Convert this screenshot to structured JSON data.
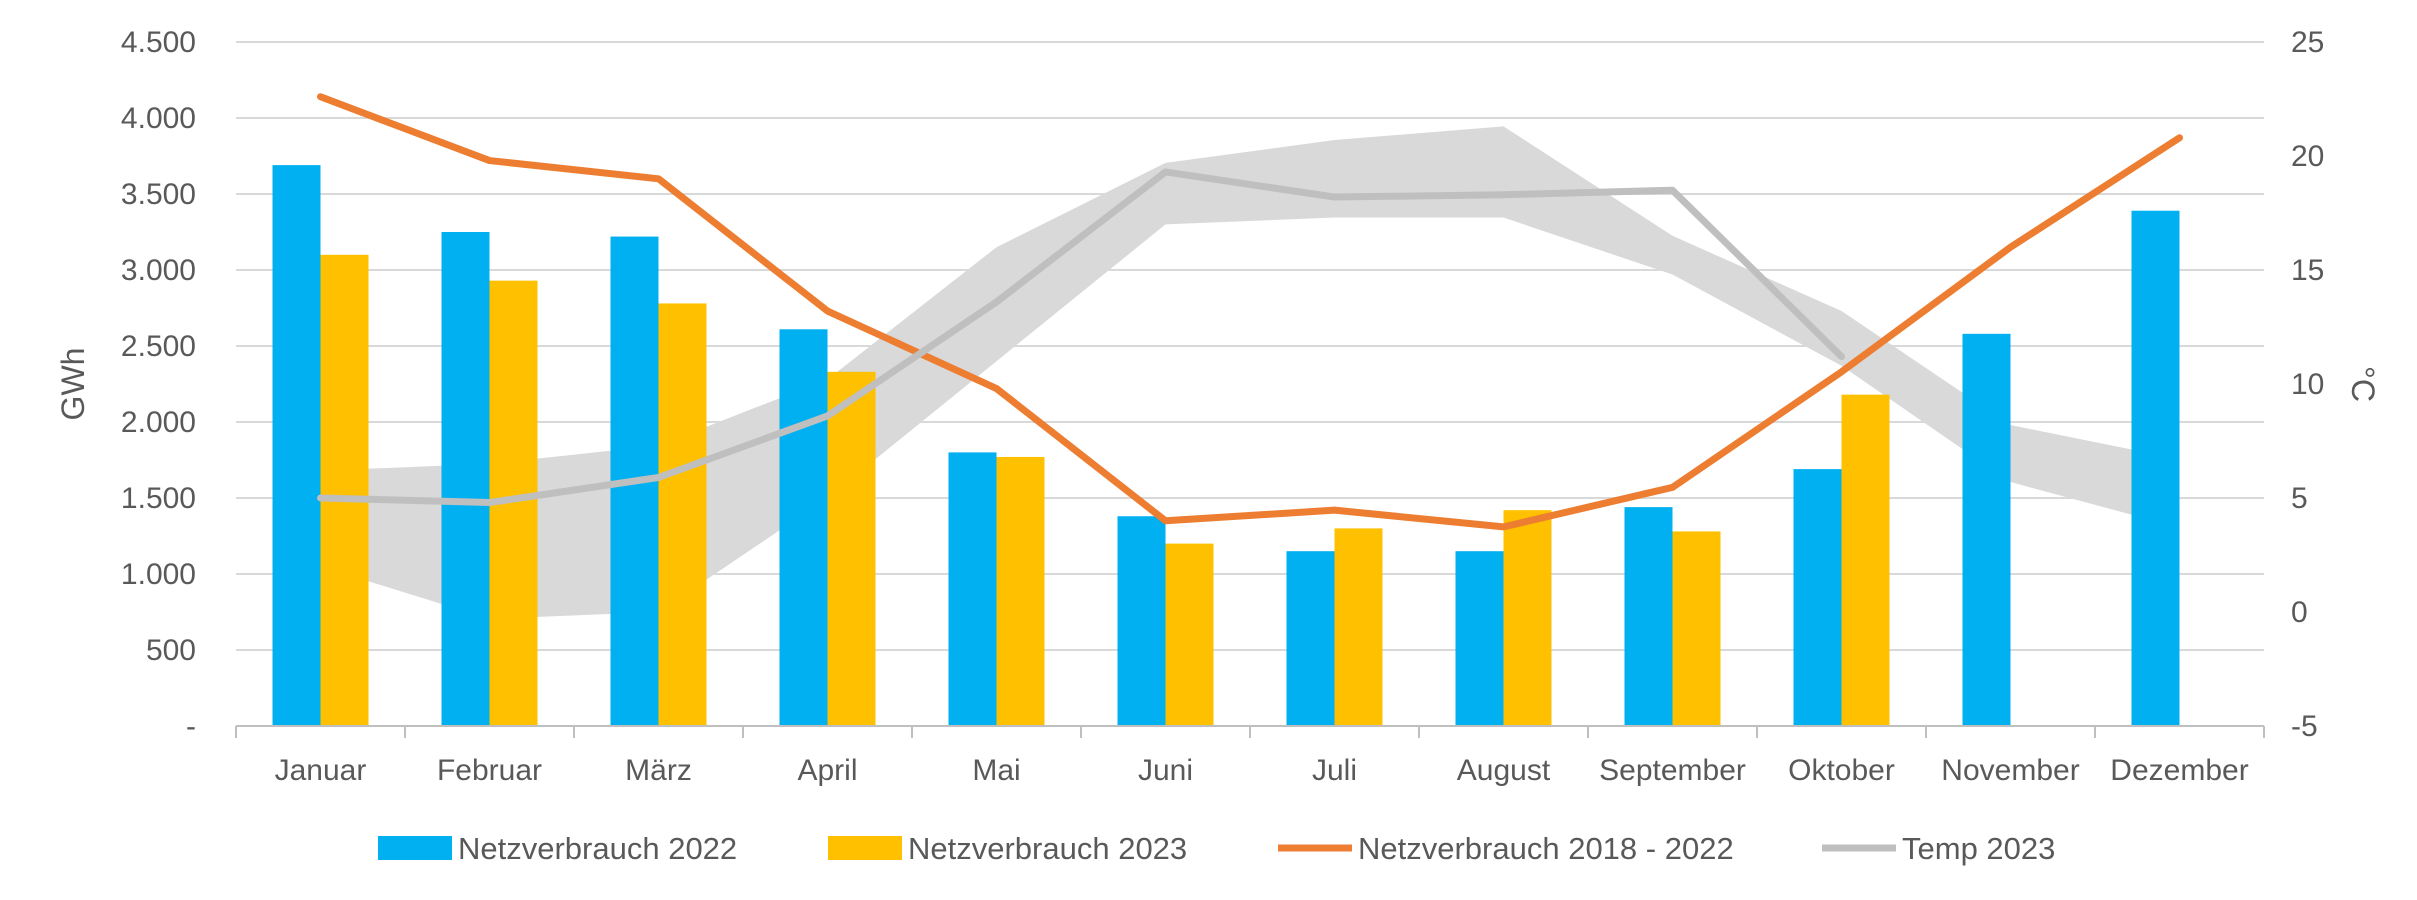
{
  "chart_data": {
    "type": "bar",
    "title": "",
    "categories": [
      "Januar",
      "Februar",
      "März",
      "April",
      "Mai",
      "Juni",
      "Juli",
      "August",
      "September",
      "Oktober",
      "November",
      "Dezember"
    ],
    "y_left": {
      "label": "GWh",
      "ylim": [
        0,
        4500
      ],
      "ticks": [
        0,
        500,
        1000,
        1500,
        2000,
        2500,
        3000,
        3500,
        4000,
        4500
      ],
      "tick_labels": [
        "-",
        "500",
        "1.000",
        "1.500",
        "2.000",
        "2.500",
        "3.000",
        "3.500",
        "4.000",
        "4.500"
      ]
    },
    "y_right": {
      "label": "°C",
      "ylim": [
        -5,
        25
      ],
      "ticks": [
        -5,
        0,
        5,
        10,
        15,
        20,
        25
      ],
      "tick_labels": [
        "-5",
        "0",
        "5",
        "10",
        "15",
        "20",
        "25"
      ]
    },
    "grid": true,
    "legend_position": "bottom",
    "series": [
      {
        "name": "Netzverbrauch 2022",
        "kind": "bar",
        "axis": "left",
        "color": "#00B0F0",
        "values": [
          3690,
          3250,
          3220,
          2610,
          1800,
          1380,
          1150,
          1150,
          1440,
          1690,
          2580,
          3390
        ]
      },
      {
        "name": "Netzverbrauch 2023",
        "kind": "bar",
        "axis": "left",
        "color": "#FFC000",
        "values": [
          3100,
          2930,
          2780,
          2330,
          1770,
          1200,
          1300,
          1420,
          1280,
          2180,
          null,
          null
        ]
      },
      {
        "name": "Netzverbrauch 2018 - 2022",
        "kind": "line",
        "axis": "left",
        "color": "#ED7D31",
        "values": [
          4140,
          3720,
          3600,
          2730,
          2220,
          1350,
          1420,
          1310,
          1570,
          2330,
          3150,
          3870
        ]
      },
      {
        "name": "Temp 2023",
        "kind": "line",
        "axis": "right",
        "color": "#BFBFBF",
        "values": [
          5.0,
          4.8,
          5.9,
          8.6,
          13.6,
          19.3,
          18.2,
          18.3,
          18.5,
          11.2,
          null,
          null
        ]
      }
    ],
    "band": {
      "axis": "right",
      "color": "#D9D9D9",
      "low": [
        2,
        -0.3,
        0,
        5,
        11,
        17,
        17.3,
        17.3,
        14.8,
        10.8,
        5.7,
        3.7
      ],
      "high": [
        6.2,
        6.5,
        7.3,
        10.2,
        16,
        19.7,
        20.7,
        21.3,
        16.5,
        13.2,
        8.2,
        6.7
      ]
    }
  }
}
